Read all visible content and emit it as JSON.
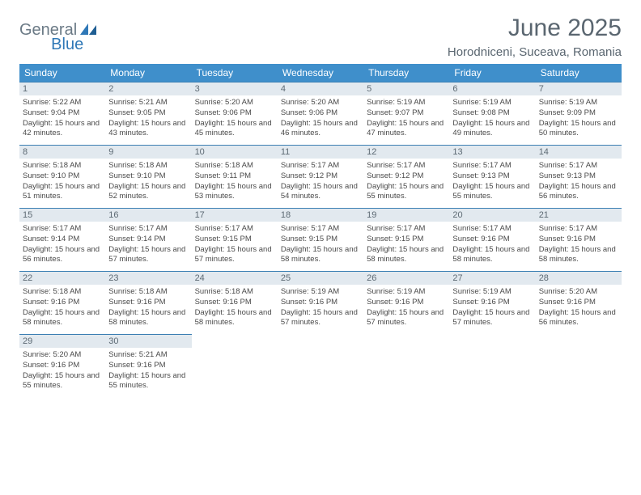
{
  "logo": {
    "general": "General",
    "blue": "Blue"
  },
  "title": "June 2025",
  "location": "Horodniceni, Suceava, Romania",
  "colors": {
    "header_bg": "#3f8fcb",
    "header_text": "#ffffff",
    "daynum_bg": "#e2e9ef",
    "daynum_text": "#5d6a74",
    "body_text": "#4a4a4a",
    "title_text": "#5a6670",
    "cell_border": "#3b7fb3",
    "logo_gray": "#6b7a86",
    "logo_blue": "#2f78b7"
  },
  "weekdays": [
    "Sunday",
    "Monday",
    "Tuesday",
    "Wednesday",
    "Thursday",
    "Friday",
    "Saturday"
  ],
  "days": [
    {
      "n": "1",
      "sr": "5:22 AM",
      "ss": "9:04 PM",
      "dl": "15 hours and 42 minutes."
    },
    {
      "n": "2",
      "sr": "5:21 AM",
      "ss": "9:05 PM",
      "dl": "15 hours and 43 minutes."
    },
    {
      "n": "3",
      "sr": "5:20 AM",
      "ss": "9:06 PM",
      "dl": "15 hours and 45 minutes."
    },
    {
      "n": "4",
      "sr": "5:20 AM",
      "ss": "9:06 PM",
      "dl": "15 hours and 46 minutes."
    },
    {
      "n": "5",
      "sr": "5:19 AM",
      "ss": "9:07 PM",
      "dl": "15 hours and 47 minutes."
    },
    {
      "n": "6",
      "sr": "5:19 AM",
      "ss": "9:08 PM",
      "dl": "15 hours and 49 minutes."
    },
    {
      "n": "7",
      "sr": "5:19 AM",
      "ss": "9:09 PM",
      "dl": "15 hours and 50 minutes."
    },
    {
      "n": "8",
      "sr": "5:18 AM",
      "ss": "9:10 PM",
      "dl": "15 hours and 51 minutes."
    },
    {
      "n": "9",
      "sr": "5:18 AM",
      "ss": "9:10 PM",
      "dl": "15 hours and 52 minutes."
    },
    {
      "n": "10",
      "sr": "5:18 AM",
      "ss": "9:11 PM",
      "dl": "15 hours and 53 minutes."
    },
    {
      "n": "11",
      "sr": "5:17 AM",
      "ss": "9:12 PM",
      "dl": "15 hours and 54 minutes."
    },
    {
      "n": "12",
      "sr": "5:17 AM",
      "ss": "9:12 PM",
      "dl": "15 hours and 55 minutes."
    },
    {
      "n": "13",
      "sr": "5:17 AM",
      "ss": "9:13 PM",
      "dl": "15 hours and 55 minutes."
    },
    {
      "n": "14",
      "sr": "5:17 AM",
      "ss": "9:13 PM",
      "dl": "15 hours and 56 minutes."
    },
    {
      "n": "15",
      "sr": "5:17 AM",
      "ss": "9:14 PM",
      "dl": "15 hours and 56 minutes."
    },
    {
      "n": "16",
      "sr": "5:17 AM",
      "ss": "9:14 PM",
      "dl": "15 hours and 57 minutes."
    },
    {
      "n": "17",
      "sr": "5:17 AM",
      "ss": "9:15 PM",
      "dl": "15 hours and 57 minutes."
    },
    {
      "n": "18",
      "sr": "5:17 AM",
      "ss": "9:15 PM",
      "dl": "15 hours and 58 minutes."
    },
    {
      "n": "19",
      "sr": "5:17 AM",
      "ss": "9:15 PM",
      "dl": "15 hours and 58 minutes."
    },
    {
      "n": "20",
      "sr": "5:17 AM",
      "ss": "9:16 PM",
      "dl": "15 hours and 58 minutes."
    },
    {
      "n": "21",
      "sr": "5:17 AM",
      "ss": "9:16 PM",
      "dl": "15 hours and 58 minutes."
    },
    {
      "n": "22",
      "sr": "5:18 AM",
      "ss": "9:16 PM",
      "dl": "15 hours and 58 minutes."
    },
    {
      "n": "23",
      "sr": "5:18 AM",
      "ss": "9:16 PM",
      "dl": "15 hours and 58 minutes."
    },
    {
      "n": "24",
      "sr": "5:18 AM",
      "ss": "9:16 PM",
      "dl": "15 hours and 58 minutes."
    },
    {
      "n": "25",
      "sr": "5:19 AM",
      "ss": "9:16 PM",
      "dl": "15 hours and 57 minutes."
    },
    {
      "n": "26",
      "sr": "5:19 AM",
      "ss": "9:16 PM",
      "dl": "15 hours and 57 minutes."
    },
    {
      "n": "27",
      "sr": "5:19 AM",
      "ss": "9:16 PM",
      "dl": "15 hours and 57 minutes."
    },
    {
      "n": "28",
      "sr": "5:20 AM",
      "ss": "9:16 PM",
      "dl": "15 hours and 56 minutes."
    },
    {
      "n": "29",
      "sr": "5:20 AM",
      "ss": "9:16 PM",
      "dl": "15 hours and 55 minutes."
    },
    {
      "n": "30",
      "sr": "5:21 AM",
      "ss": "9:16 PM",
      "dl": "15 hours and 55 minutes."
    }
  ],
  "labels": {
    "sunrise": "Sunrise: ",
    "sunset": "Sunset: ",
    "daylight": "Daylight: "
  }
}
